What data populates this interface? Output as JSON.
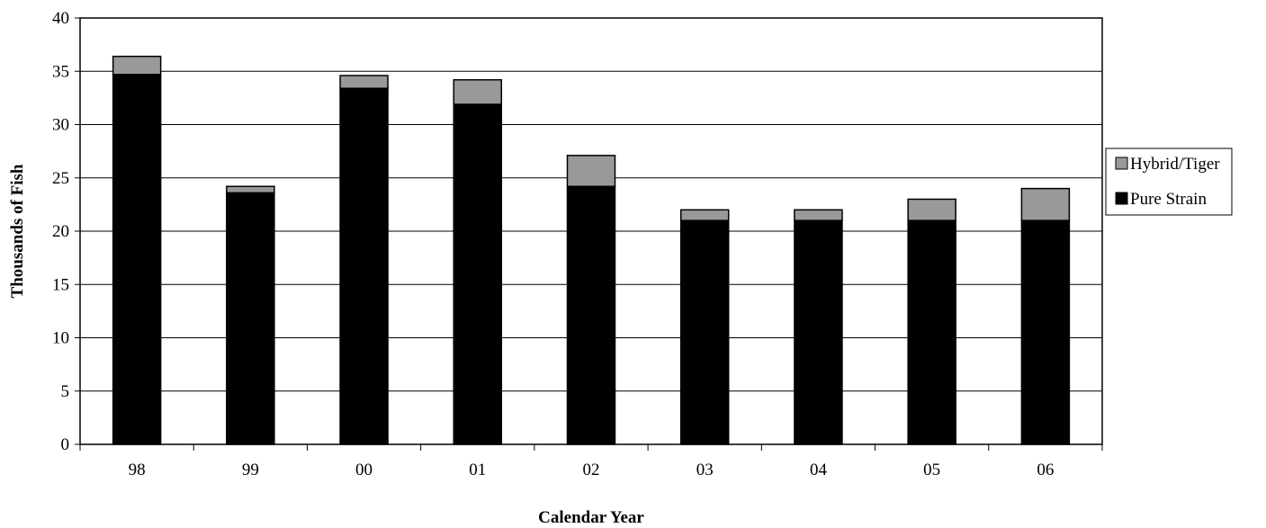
{
  "chart_data": {
    "type": "bar",
    "stacked": true,
    "categories": [
      "98",
      "99",
      "00",
      "01",
      "02",
      "03",
      "04",
      "05",
      "06"
    ],
    "series": [
      {
        "name": "Pure Strain",
        "color": "#000000",
        "values": [
          34.7,
          23.6,
          33.4,
          31.9,
          24.2,
          21.0,
          21.0,
          21.0,
          21.0
        ]
      },
      {
        "name": "Hybrid/Tiger",
        "color": "#999999",
        "values": [
          1.7,
          0.6,
          1.2,
          2.3,
          2.9,
          1.0,
          1.0,
          2.0,
          3.0
        ]
      }
    ],
    "title": "",
    "xlabel": "Calendar Year",
    "ylabel": "Thousands of Fish",
    "ylim": [
      0,
      40
    ],
    "yticks": [
      "0",
      "5",
      "10",
      "15",
      "20",
      "25",
      "30",
      "35",
      "40"
    ],
    "grid": true,
    "legend_position": "right"
  }
}
